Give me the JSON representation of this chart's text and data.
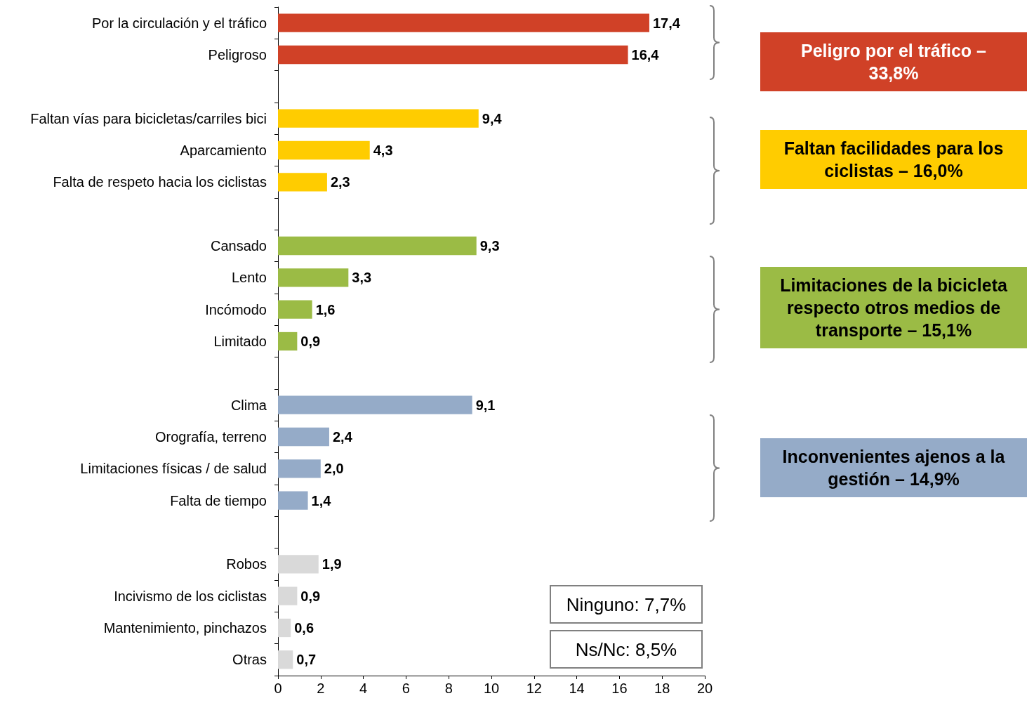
{
  "chart_data": {
    "type": "bar",
    "orientation": "horizontal",
    "categories": [
      "Por la circulación y el tráfico",
      "Peligroso",
      null,
      "Faltan vías para bicicletas/carriles bici",
      "Aparcamiento",
      "Falta de respeto hacia los ciclistas",
      null,
      "Cansado",
      "Lento",
      "Incómodo",
      "Limitado",
      null,
      "Clima",
      "Orografía, terreno",
      "Limitaciones físicas / de salud",
      "Falta de tiempo",
      null,
      "Robos",
      "Incivismo de los ciclistas",
      "Mantenimiento, pinchazos",
      "Otras"
    ],
    "values": [
      17.4,
      16.4,
      null,
      9.4,
      4.3,
      2.3,
      null,
      9.3,
      3.3,
      1.6,
      0.9,
      null,
      9.1,
      2.4,
      2.0,
      1.4,
      null,
      1.9,
      0.9,
      0.6,
      0.7
    ],
    "value_labels": [
      "17,4",
      "16,4",
      null,
      "9,4",
      "4,3",
      "2,3",
      null,
      "9,3",
      "3,3",
      "1,6",
      "0,9",
      null,
      "9,1",
      "2,4",
      "2,0",
      "1,4",
      null,
      "1,9",
      "0,9",
      "0,6",
      "0,7"
    ],
    "colors": [
      "#d04127",
      "#d04127",
      null,
      "#ffcc00",
      "#ffcc00",
      "#ffcc00",
      null,
      "#9bbb45",
      "#9bbb45",
      "#9bbb45",
      "#9bbb45",
      null,
      "#95abc8",
      "#95abc8",
      "#95abc8",
      "#95abc8",
      null,
      "#d9d9d9",
      "#d9d9d9",
      "#d9d9d9",
      "#d9d9d9"
    ],
    "xlim": [
      0,
      20
    ],
    "xticks": [
      0,
      2,
      4,
      6,
      8,
      10,
      12,
      14,
      16,
      18,
      20
    ],
    "grid": false,
    "annotations": [
      "Peligro por el tráfico – 33,8%",
      "Faltan facilidades para los ciclistas – 16,0%",
      "Limitaciones de la bicicleta respecto otros medios de transporte – 15,1%",
      "Inconvenientes ajenos a la gestión – 14,9%",
      "Ninguno: 7,7%",
      "Ns/Nc: 8,5%"
    ]
  }
}
